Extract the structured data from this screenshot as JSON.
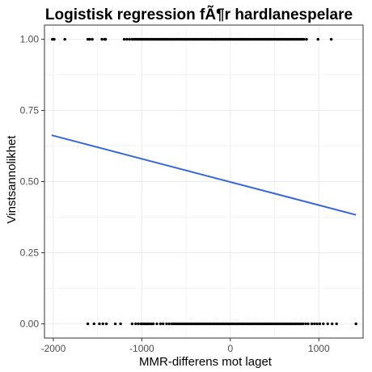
{
  "chart_data": {
    "type": "scatter",
    "title": "Logistisk regression fÃ¶r hardlanespelare",
    "xlabel": "MMR-differens mot laget",
    "ylabel": "Vinstsannolikhet",
    "xlim": [
      -2100,
      1500
    ],
    "ylim": [
      -0.05,
      1.05
    ],
    "x_ticks": [
      -2000,
      -1000,
      0,
      1000
    ],
    "x_tick_labels": [
      "-2000",
      "-1000",
      "0",
      "1000"
    ],
    "y_ticks": [
      0,
      0.25,
      0.5,
      0.75,
      1
    ],
    "y_tick_labels": [
      "0.00",
      "0.25",
      "0.50",
      "0.75",
      "1.00"
    ],
    "grid": true,
    "colors": {
      "fit_line": "#3366dd",
      "points": "#000000",
      "grid": "#ebebeb",
      "panel_border": "#333333"
    },
    "fit_line": {
      "x": [
        -2020,
        1420
      ],
      "y": [
        0.663,
        0.383
      ]
    },
    "series": [
      {
        "outcome": 1,
        "x": [
          -2010,
          -1990,
          -1870,
          -1610,
          -1590,
          -1560,
          -1450,
          -1420,
          -1410,
          -1200,
          -1170,
          -1140,
          -1110,
          -1090,
          -1070,
          -1050,
          -1030,
          -1010,
          -990,
          -970,
          -950,
          -930,
          -910,
          -890,
          -870,
          -850,
          -830,
          -810,
          -790,
          -770,
          -750,
          -730,
          -710,
          -690,
          -670,
          -650,
          -630,
          -610,
          -590,
          -570,
          -550,
          -530,
          -510,
          -490,
          -470,
          -450,
          -430,
          -410,
          -390,
          -370,
          -350,
          -330,
          -310,
          -290,
          -270,
          -250,
          -230,
          -210,
          -190,
          -170,
          -150,
          -130,
          -110,
          -90,
          -70,
          -50,
          -30,
          -10,
          10,
          30,
          50,
          70,
          90,
          110,
          130,
          150,
          170,
          190,
          210,
          230,
          250,
          270,
          290,
          310,
          330,
          350,
          370,
          390,
          410,
          430,
          450,
          470,
          490,
          510,
          530,
          550,
          570,
          590,
          610,
          630,
          650,
          670,
          690,
          710,
          730,
          750,
          770,
          790,
          810,
          830,
          860,
          990,
          1140
        ]
      },
      {
        "outcome": 0,
        "x": [
          -1610,
          -1540,
          -1480,
          -1440,
          -1400,
          -1300,
          -1240,
          -1110,
          -1070,
          -1040,
          -1010,
          -990,
          -970,
          -950,
          -930,
          -910,
          -890,
          -870,
          -830,
          -790,
          -760,
          -720,
          -690,
          -660,
          -640,
          -620,
          -600,
          -580,
          -560,
          -540,
          -520,
          -500,
          -480,
          -460,
          -440,
          -420,
          -400,
          -380,
          -360,
          -340,
          -320,
          -300,
          -280,
          -260,
          -240,
          -220,
          -200,
          -180,
          -160,
          -140,
          -120,
          -100,
          -80,
          -60,
          -40,
          -20,
          0,
          20,
          40,
          60,
          80,
          100,
          120,
          140,
          160,
          180,
          200,
          220,
          240,
          260,
          280,
          300,
          320,
          340,
          360,
          380,
          400,
          420,
          440,
          460,
          480,
          500,
          520,
          540,
          560,
          580,
          600,
          620,
          640,
          660,
          680,
          700,
          720,
          740,
          760,
          780,
          800,
          820,
          850,
          880,
          920,
          950,
          980,
          1010,
          1050,
          1100,
          1150,
          1200,
          1420
        ]
      }
    ]
  }
}
